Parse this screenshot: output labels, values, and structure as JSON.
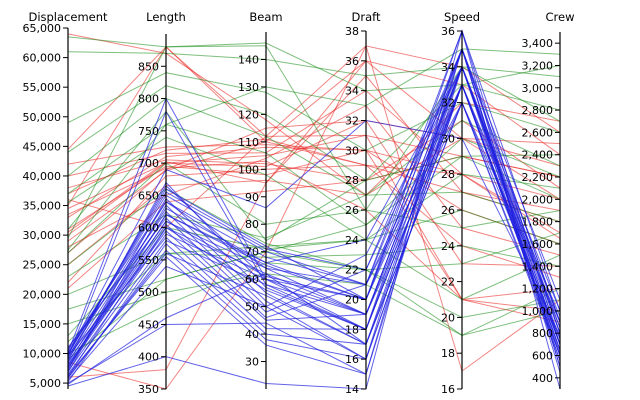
{
  "chart_data": {
    "type": "parallel-coordinates",
    "title": "",
    "series_colors": {
      "red": "#e8211c",
      "green": "#158c15",
      "blue": "#1f1fe0"
    },
    "axes": [
      {
        "name": "Displacement",
        "range": [
          4000,
          65000
        ],
        "ticks": [
          5000,
          10000,
          15000,
          20000,
          25000,
          30000,
          35000,
          40000,
          45000,
          50000,
          55000,
          60000,
          65000
        ],
        "tick_labels": [
          "5,000",
          "10,000",
          "15,000",
          "20,000",
          "25,000",
          "30,000",
          "35,000",
          "40,000",
          "45,000",
          "50,000",
          "55,000",
          "60,000",
          "65,000"
        ]
      },
      {
        "name": "Length",
        "range": [
          350,
          900
        ],
        "ticks": [
          350,
          400,
          450,
          500,
          550,
          600,
          650,
          700,
          750,
          800,
          850
        ],
        "tick_labels": [
          "350",
          "400",
          "450",
          "500",
          "550",
          "600",
          "650",
          "700",
          "750",
          "800",
          "850"
        ]
      },
      {
        "name": "Beam",
        "range": [
          20,
          150
        ],
        "ticks": [
          30,
          40,
          50,
          60,
          70,
          80,
          90,
          100,
          110,
          120,
          130,
          140
        ],
        "tick_labels": [
          "30",
          "40",
          "50",
          "60",
          "70",
          "80",
          "90",
          "100",
          "110",
          "120",
          "130",
          "140"
        ]
      },
      {
        "name": "Draft",
        "range": [
          14,
          38
        ],
        "ticks": [
          14,
          16,
          18,
          20,
          22,
          24,
          26,
          28,
          30,
          32,
          34,
          36,
          38
        ],
        "tick_labels": [
          "14",
          "16",
          "18",
          "20",
          "22",
          "24",
          "26",
          "28",
          "30",
          "32",
          "34",
          "36",
          "38"
        ]
      },
      {
        "name": "Speed",
        "range": [
          16,
          36
        ],
        "ticks": [
          16,
          18,
          20,
          22,
          24,
          26,
          28,
          30,
          32,
          34,
          36
        ],
        "tick_labels": [
          "16",
          "18",
          "20",
          "22",
          "24",
          "26",
          "28",
          "30",
          "32",
          "34",
          "36"
        ]
      },
      {
        "name": "Crew",
        "range": [
          300,
          3500
        ],
        "ticks": [
          400,
          600,
          800,
          1000,
          1200,
          1400,
          1600,
          1800,
          2000,
          2200,
          2400,
          2600,
          2800,
          3000,
          3200,
          3400
        ],
        "tick_labels": [
          "400",
          "600",
          "800",
          "1,000",
          "1,200",
          "1,400",
          "1,600",
          "1,800",
          "2,000",
          "2,200",
          "2,400",
          "2,600",
          "2,800",
          "3,000",
          "3,200",
          "3,400"
        ]
      }
    ],
    "series": [
      {
        "name": "red",
        "color": "#e8211c",
        "opacity": 0.55,
        "lines": [
          [
            44500,
            880,
            112,
            37,
            34,
            2600
          ],
          [
            35000,
            880,
            110,
            36,
            33,
            2400
          ],
          [
            30000,
            700,
            105,
            31,
            29,
            2200
          ],
          [
            33000,
            710,
            108,
            30,
            28,
            2000
          ],
          [
            27000,
            690,
            115,
            32,
            30,
            2500
          ],
          [
            37000,
            720,
            111,
            29,
            27,
            1800
          ],
          [
            38000,
            705,
            102,
            28,
            31,
            2100
          ],
          [
            31000,
            695,
            98,
            30,
            26,
            1600
          ],
          [
            28000,
            650,
            104,
            33,
            25,
            1500
          ],
          [
            22000,
            680,
            100,
            29,
            24,
            1300
          ],
          [
            40000,
            715,
            106,
            34,
            28,
            1700
          ],
          [
            25000,
            665,
            96,
            27,
            30,
            2300
          ],
          [
            64000,
            870,
            118,
            27,
            32,
            2700
          ],
          [
            36000,
            600,
            112,
            31,
            21,
            1200
          ],
          [
            30500,
            702,
            95,
            35,
            27,
            1900
          ],
          [
            33500,
            692,
            103,
            26,
            21,
            1000
          ],
          [
            21000,
            640,
            92,
            28,
            29,
            2200
          ],
          [
            42000,
            725,
            109,
            30,
            21,
            900
          ],
          [
            8500,
            350,
            70,
            37,
            17,
            1100
          ],
          [
            6000,
            380,
            95,
            36,
            30,
            2000
          ],
          [
            34500,
            700,
            101,
            32,
            23,
            1400
          ],
          [
            29000,
            688,
            110,
            29,
            28,
            1650
          ]
        ]
      },
      {
        "name": "green",
        "color": "#158c15",
        "opacity": 0.55,
        "lines": [
          [
            63500,
            880,
            146,
            34,
            33,
            3200
          ],
          [
            61000,
            870,
            140,
            35,
            34,
            2700
          ],
          [
            49000,
            840,
            128,
            30,
            32,
            2600
          ],
          [
            44000,
            820,
            120,
            28,
            29,
            2400
          ],
          [
            40000,
            800,
            112,
            27,
            31,
            2300
          ],
          [
            37000,
            760,
            106,
            25,
            30,
            2200
          ],
          [
            35500,
            740,
            98,
            24,
            28,
            2100
          ],
          [
            29500,
            880,
            145,
            26,
            34,
            3100
          ],
          [
            27000,
            700,
            80,
            26,
            25,
            1900
          ],
          [
            25000,
            660,
            73,
            22,
            23,
            1700
          ],
          [
            20000,
            560,
            72,
            24,
            21,
            1500
          ],
          [
            17500,
            520,
            70,
            22,
            19,
            1000
          ],
          [
            15000,
            500,
            62,
            21,
            19,
            1200
          ],
          [
            12000,
            560,
            68,
            23,
            24,
            1400
          ],
          [
            10000,
            480,
            66,
            22,
            20,
            1100
          ],
          [
            9000,
            520,
            70,
            25,
            29,
            2000
          ],
          [
            31000,
            780,
            74,
            28,
            33,
            2800
          ],
          [
            23000,
            620,
            75,
            27,
            27,
            1800
          ],
          [
            27500,
            760,
            130,
            33,
            35,
            3300
          ],
          [
            13000,
            600,
            71,
            24,
            26,
            1600
          ]
        ]
      },
      {
        "name": "blue",
        "color": "#1f1fe0",
        "opacity": 0.7,
        "lines": [
          [
            4500,
            400,
            22,
            14,
            36,
            300
          ],
          [
            5000,
            450,
            44,
            15,
            35,
            450
          ],
          [
            5500,
            540,
            50,
            16,
            35,
            500
          ],
          [
            6000,
            560,
            54,
            17,
            34,
            550
          ],
          [
            6500,
            580,
            58,
            18,
            33,
            600
          ],
          [
            7000,
            590,
            60,
            18,
            34,
            650
          ],
          [
            7500,
            600,
            62,
            19,
            33,
            700
          ],
          [
            8000,
            610,
            64,
            19,
            32,
            750
          ],
          [
            8500,
            620,
            65,
            20,
            34,
            800
          ],
          [
            9000,
            630,
            66,
            20,
            33,
            850
          ],
          [
            9500,
            640,
            68,
            21,
            32,
            900
          ],
          [
            10000,
            650,
            70,
            21,
            33,
            950
          ],
          [
            10000,
            655,
            71,
            22,
            34,
            1000
          ],
          [
            9800,
            660,
            72,
            20,
            35,
            800
          ],
          [
            9200,
            665,
            60,
            19,
            34,
            700
          ],
          [
            8800,
            670,
            57,
            18,
            33,
            650
          ],
          [
            7200,
            645,
            55,
            17,
            32,
            600
          ],
          [
            6800,
            635,
            52,
            16,
            33,
            700
          ],
          [
            10500,
            625,
            50,
            23,
            34,
            850
          ],
          [
            11000,
            615,
            48,
            22,
            35,
            900
          ],
          [
            7800,
            605,
            46,
            21,
            36,
            1000
          ],
          [
            8200,
            595,
            45,
            19,
            34,
            750
          ],
          [
            9600,
            585,
            42,
            18,
            33,
            650
          ],
          [
            5200,
            575,
            40,
            17,
            32,
            560
          ],
          [
            5800,
            565,
            38,
            16,
            33,
            620
          ],
          [
            6300,
            555,
            36,
            15,
            34,
            700
          ],
          [
            10200,
            800,
            60,
            20,
            35,
            900
          ],
          [
            9400,
            780,
            58,
            19,
            34,
            800
          ],
          [
            4800,
            460,
            62,
            17,
            33,
            600
          ],
          [
            10800,
            640,
            64,
            21,
            35,
            1100
          ],
          [
            7600,
            620,
            66,
            24,
            34,
            900
          ],
          [
            8600,
            610,
            61,
            20,
            36,
            700
          ],
          [
            6100,
            600,
            56,
            18,
            35,
            500
          ],
          [
            9900,
            690,
            86,
            32,
            30,
            780
          ]
        ]
      }
    ]
  }
}
